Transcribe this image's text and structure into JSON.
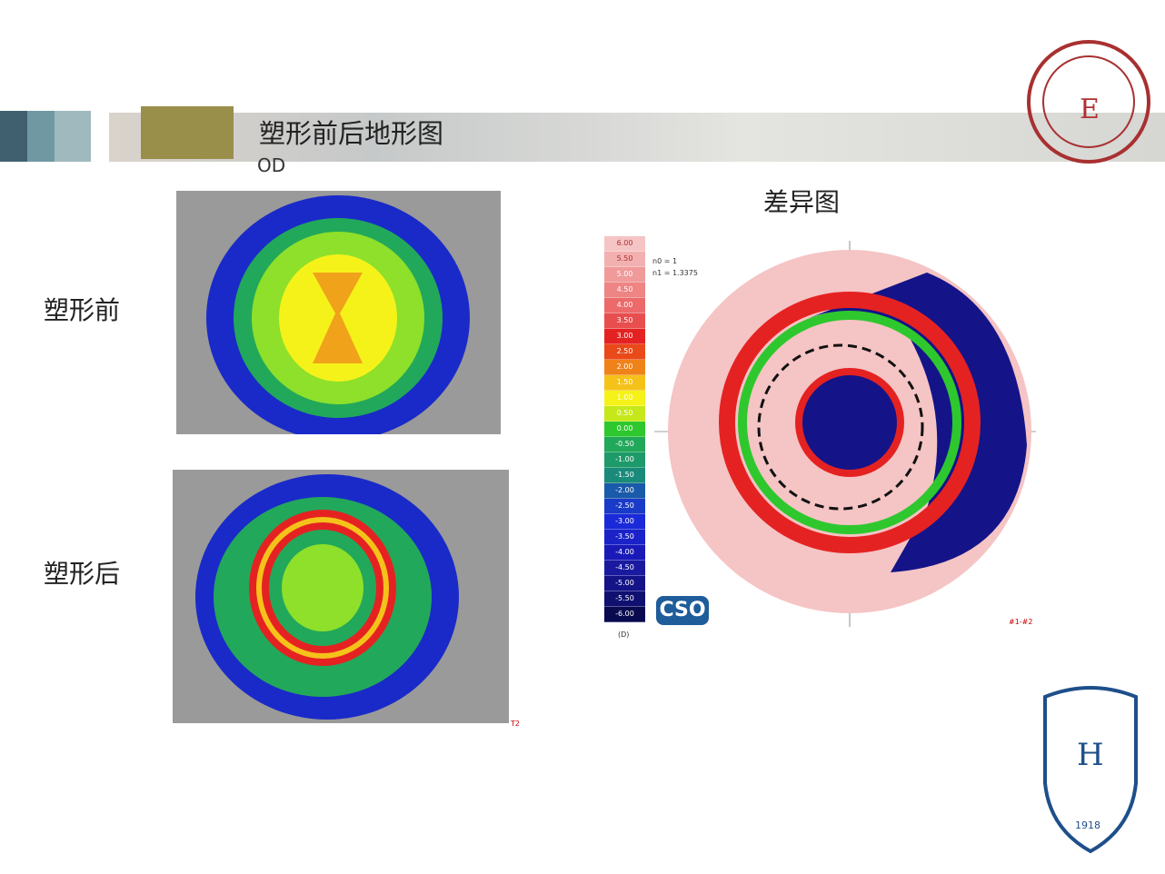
{
  "header": {
    "title": "塑形前后地形图",
    "subtitle": "OD"
  },
  "labels": {
    "before": "塑形前",
    "after": "塑形后",
    "difference": "差异图"
  },
  "scale": {
    "values": [
      "6.00",
      "5.50",
      "5.00",
      "4.50",
      "4.00",
      "3.50",
      "3.00",
      "2.50",
      "2.00",
      "1.50",
      "1.00",
      "0.50",
      "0.00",
      "-0.50",
      "-1.00",
      "-1.50",
      "-2.00",
      "-2.50",
      "-3.00",
      "-3.50",
      "-4.00",
      "-4.50",
      "-5.00",
      "-5.50",
      "-6.00"
    ],
    "colors": [
      "#f5c4c4",
      "#f3b0b0",
      "#f09a9a",
      "#ee8484",
      "#ec6a6a",
      "#e84e4e",
      "#e52222",
      "#ea4a1a",
      "#f0821a",
      "#f5c21a",
      "#f5f21a",
      "#c6e81a",
      "#2ec82e",
      "#22a85a",
      "#1e9a6a",
      "#1a8a7a",
      "#1a5aaa",
      "#1a3ac8",
      "#1a2ad8",
      "#1a22c8",
      "#1a1ab8",
      "#1a1aa0",
      "#141488",
      "#101070",
      "#0a0a50"
    ],
    "unit": "(D)",
    "n0": "n0 = 1",
    "n1": "n1 = 1.3375"
  },
  "logo": {
    "cso": "CSO",
    "hospital_year": "1918"
  },
  "corner_marks": {
    "after": "T2",
    "diff": "#1-#2"
  }
}
